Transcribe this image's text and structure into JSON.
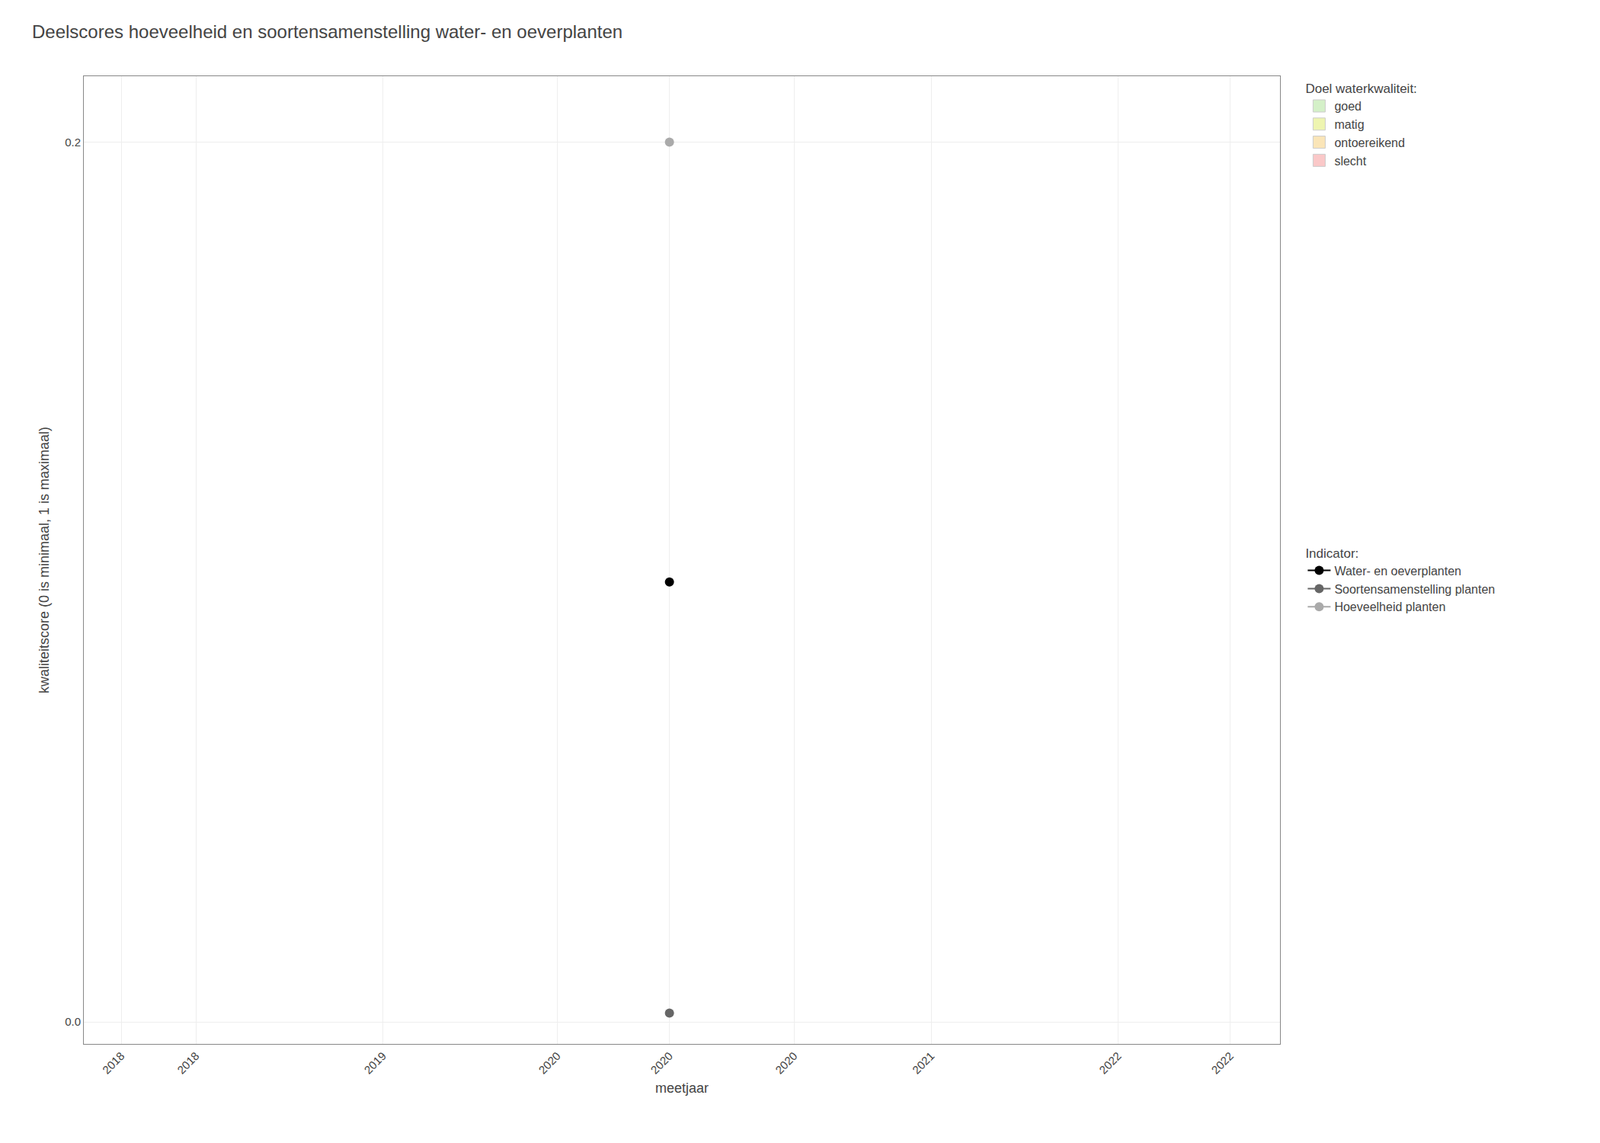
{
  "chart_data": {
    "type": "line",
    "title": "Deelscores hoeveelheid en soortensamenstelling water- en oeverplanten",
    "x_label": "meetjaar",
    "y_label": "kwaliteitscore (0 is minimaal, 1 is maximaal)",
    "xlim": [
      2017.6,
      2022.4
    ],
    "ylim": [
      -0.005,
      0.215
    ],
    "xticks": [
      {
        "value": 2017.75,
        "label": "2018"
      },
      {
        "value": 2018.05,
        "label": "2018"
      },
      {
        "value": 2018.8,
        "label": "2019"
      },
      {
        "value": 2019.5,
        "label": "2020"
      },
      {
        "value": 2019.95,
        "label": "2020"
      },
      {
        "value": 2020.45,
        "label": "2020"
      },
      {
        "value": 2021.0,
        "label": "2021"
      },
      {
        "value": 2021.75,
        "label": "2022"
      },
      {
        "value": 2022.2,
        "label": "2022"
      }
    ],
    "yticks": [
      {
        "value": 0.0,
        "label": "0.0"
      },
      0.2
    ],
    "grid": true,
    "legend": "right",
    "series_legend_title": "Indicator:",
    "series": [
      {
        "name": "Water- en oeverplanten",
        "color": "#000000",
        "marker": "circle",
        "x": [
          2019.95
        ],
        "values": [
          0.1
        ]
      },
      {
        "name": "Soortensamenstelling planten",
        "color": "#666666",
        "marker": "circle",
        "x": [
          2019.95
        ],
        "values": [
          0.002
        ]
      },
      {
        "name": "Hoeveelheid planten",
        "color": "#aaaaaa",
        "marker": "circle",
        "x": [
          2019.95
        ],
        "values": [
          0.2
        ]
      }
    ],
    "quality_bands_title": "Doel waterkwaliteit:",
    "quality_bands": [
      {
        "name": "goed",
        "color": "#d4f0c8"
      },
      {
        "name": "matig",
        "color": "#eef5b0"
      },
      {
        "name": "ontoereikend",
        "color": "#fae5b8"
      },
      {
        "name": "slecht",
        "color": "#fac8c8"
      }
    ]
  }
}
